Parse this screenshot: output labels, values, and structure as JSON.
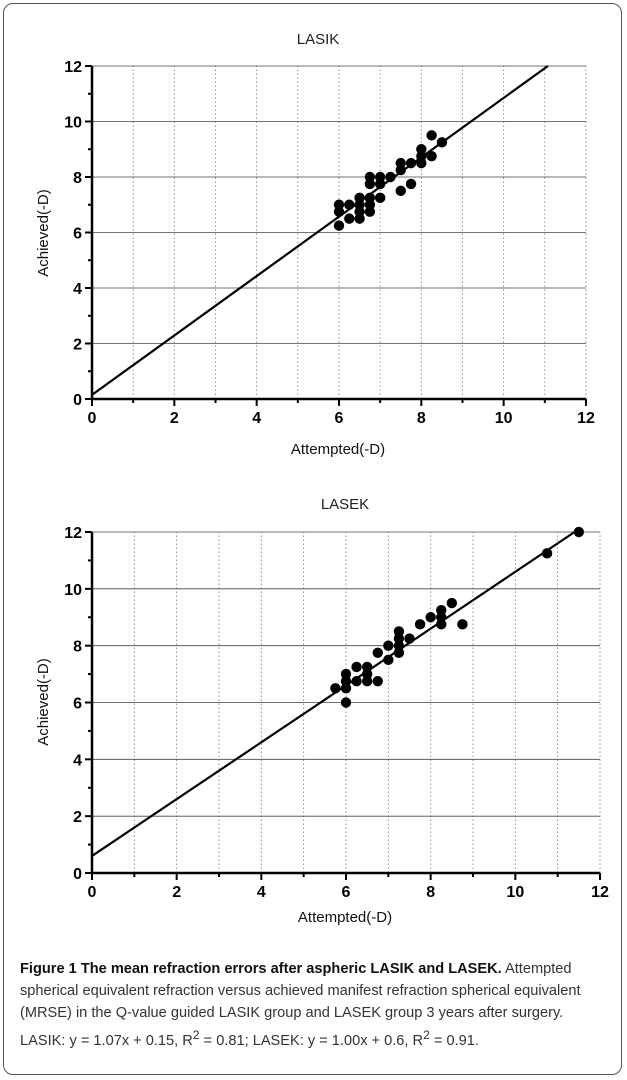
{
  "chart_data": [
    {
      "type": "scatter",
      "title": "LASIK",
      "xlabel": "Attempted(-D)",
      "ylabel": "Achieved(-D)",
      "xlim": [
        0,
        12
      ],
      "ylim": [
        0,
        12
      ],
      "x_ticks": [
        "0",
        "2",
        "4",
        "6",
        "8",
        "10",
        "12"
      ],
      "y_ticks": [
        "0",
        "2",
        "4",
        "6",
        "8",
        "10",
        "12"
      ],
      "grid": "vertical dotted at each unit, horizontal at even values",
      "fit_line": {
        "slope": 1.07,
        "intercept": 0.15
      },
      "points": [
        [
          6.0,
          6.25
        ],
        [
          6.0,
          6.75
        ],
        [
          6.0,
          7.0
        ],
        [
          6.25,
          6.5
        ],
        [
          6.25,
          7.0
        ],
        [
          6.5,
          6.5
        ],
        [
          6.5,
          6.75
        ],
        [
          6.5,
          7.0
        ],
        [
          6.5,
          7.25
        ],
        [
          6.75,
          6.75
        ],
        [
          6.75,
          7.0
        ],
        [
          6.75,
          7.25
        ],
        [
          6.75,
          7.75
        ],
        [
          6.75,
          8.0
        ],
        [
          7.0,
          7.25
        ],
        [
          7.0,
          7.75
        ],
        [
          7.0,
          8.0
        ],
        [
          7.25,
          8.0
        ],
        [
          7.5,
          7.5
        ],
        [
          7.5,
          8.25
        ],
        [
          7.5,
          8.5
        ],
        [
          7.75,
          7.75
        ],
        [
          7.75,
          8.5
        ],
        [
          8.0,
          8.5
        ],
        [
          8.0,
          8.75
        ],
        [
          8.0,
          9.0
        ],
        [
          8.25,
          8.75
        ],
        [
          8.25,
          9.5
        ],
        [
          8.5,
          9.25
        ]
      ]
    },
    {
      "type": "scatter",
      "title": "LASEK",
      "xlabel": "Attempted(-D)",
      "ylabel": "Achieved(-D)",
      "xlim": [
        0,
        12
      ],
      "ylim": [
        0,
        12
      ],
      "x_ticks": [
        "0",
        "2",
        "4",
        "6",
        "8",
        "10",
        "12"
      ],
      "y_ticks": [
        "0",
        "2",
        "4",
        "6",
        "8",
        "10",
        "12"
      ],
      "grid": "vertical dotted at each unit, horizontal at even values",
      "fit_line": {
        "slope": 1.0,
        "intercept": 0.6
      },
      "points": [
        [
          5.75,
          6.5
        ],
        [
          6.0,
          6.0
        ],
        [
          6.0,
          6.5
        ],
        [
          6.0,
          6.75
        ],
        [
          6.0,
          7.0
        ],
        [
          6.25,
          6.75
        ],
        [
          6.25,
          7.25
        ],
        [
          6.5,
          6.75
        ],
        [
          6.5,
          7.0
        ],
        [
          6.5,
          7.25
        ],
        [
          6.75,
          6.75
        ],
        [
          6.75,
          7.75
        ],
        [
          7.0,
          7.5
        ],
        [
          7.0,
          8.0
        ],
        [
          7.25,
          7.75
        ],
        [
          7.25,
          8.0
        ],
        [
          7.25,
          8.25
        ],
        [
          7.25,
          8.5
        ],
        [
          7.5,
          8.25
        ],
        [
          7.75,
          8.75
        ],
        [
          8.0,
          9.0
        ],
        [
          8.25,
          8.75
        ],
        [
          8.25,
          9.0
        ],
        [
          8.25,
          9.25
        ],
        [
          8.5,
          9.5
        ],
        [
          8.75,
          8.75
        ],
        [
          10.75,
          11.25
        ],
        [
          11.5,
          12.0
        ]
      ]
    }
  ],
  "caption": {
    "bold": "Figure 1 The mean refraction errors after aspheric LASIK and LASEK.",
    "text": " Attempted spherical equivalent refraction versus achieved manifest refraction spherical equivalent (MRSE) in the Q-value guided LASIK group and LASEK group 3 years after surgery. LASIK: y = 1.07x + 0.15, R",
    "sup1": "2",
    "text2": " = 0.81; LASEK: y = 1.00x + 0.6, R",
    "sup2": "2",
    "text3": " = 0.91."
  }
}
